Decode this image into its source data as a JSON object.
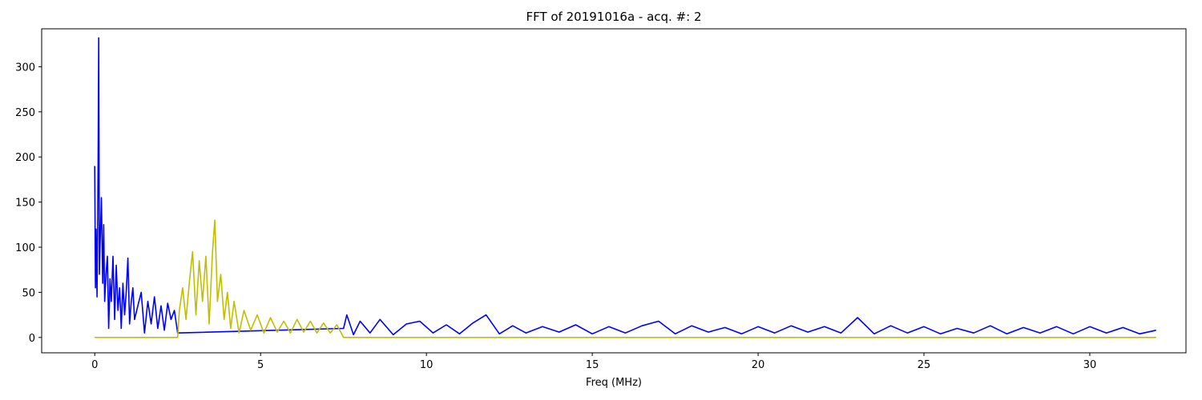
{
  "chart_data": {
    "type": "line",
    "title": "FFT of 20191016a - acq. #: 2",
    "xlabel": "Freq (MHz)",
    "ylabel": "",
    "xlim": [
      -1.6,
      32.9
    ],
    "ylim": [
      -17,
      342
    ],
    "grid": false,
    "xticks": [
      {
        "value": 0,
        "label": "0"
      },
      {
        "value": 5,
        "label": "5"
      },
      {
        "value": 10,
        "label": "10"
      },
      {
        "value": 15,
        "label": "15"
      },
      {
        "value": 20,
        "label": "20"
      },
      {
        "value": 25,
        "label": "25"
      },
      {
        "value": 30,
        "label": "30"
      }
    ],
    "yticks": [
      {
        "value": 0,
        "label": "0"
      },
      {
        "value": 50,
        "label": "50"
      },
      {
        "value": 100,
        "label": "100"
      },
      {
        "value": 150,
        "label": "150"
      },
      {
        "value": 200,
        "label": "200"
      },
      {
        "value": 250,
        "label": "250"
      },
      {
        "value": 300,
        "label": "300"
      }
    ],
    "series": [
      {
        "color": "#0000ff",
        "x": [
          0.0,
          0.02,
          0.04,
          0.07,
          0.1,
          0.12,
          0.14,
          0.16,
          0.2,
          0.24,
          0.27,
          0.3,
          0.34,
          0.38,
          0.42,
          0.46,
          0.5,
          0.55,
          0.6,
          0.65,
          0.7,
          0.75,
          0.8,
          0.85,
          0.9,
          0.95,
          1.0,
          1.05,
          1.1,
          1.15,
          1.2,
          1.3,
          1.4,
          1.5,
          1.6,
          1.7,
          1.8,
          1.9,
          2.0,
          2.1,
          2.2,
          2.3,
          2.4,
          2.5,
          7.5,
          7.6,
          7.8,
          8.0,
          8.3,
          8.6,
          9.0,
          9.4,
          9.8,
          10.2,
          10.6,
          11.0,
          11.4,
          11.8,
          12.2,
          12.6,
          13.0,
          13.5,
          14.0,
          14.5,
          15.0,
          15.5,
          16.0,
          16.5,
          17.0,
          17.5,
          18.0,
          18.5,
          19.0,
          19.5,
          20.0,
          20.5,
          21.0,
          21.5,
          22.0,
          22.5,
          23.0,
          23.5,
          24.0,
          24.5,
          25.0,
          25.5,
          26.0,
          26.5,
          27.0,
          27.5,
          28.0,
          28.5,
          29.0,
          29.5,
          30.0,
          30.5,
          31.0,
          31.5,
          32.0
        ],
        "y": [
          190,
          55,
          120,
          45,
          190,
          332,
          70,
          100,
          155,
          60,
          125,
          40,
          70,
          90,
          10,
          65,
          40,
          90,
          20,
          80,
          30,
          55,
          10,
          60,
          25,
          50,
          88,
          15,
          40,
          55,
          20,
          35,
          50,
          5,
          40,
          15,
          45,
          10,
          35,
          8,
          38,
          20,
          30,
          5,
          10,
          25,
          3,
          18,
          5,
          20,
          3,
          15,
          18,
          5,
          14,
          4,
          16,
          25,
          4,
          13,
          5,
          12,
          6,
          14,
          4,
          12,
          5,
          13,
          18,
          4,
          13,
          6,
          11,
          4,
          12,
          5,
          13,
          6,
          12,
          5,
          22,
          4,
          13,
          5,
          12,
          4,
          10,
          5,
          13,
          4,
          11,
          5,
          12,
          4,
          12,
          5,
          11,
          4,
          8
        ]
      },
      {
        "color": "#bfbf00",
        "x": [
          0.0,
          2.5,
          2.55,
          2.65,
          2.75,
          2.85,
          2.95,
          3.05,
          3.15,
          3.25,
          3.35,
          3.45,
          3.55,
          3.62,
          3.7,
          3.8,
          3.9,
          4.0,
          4.1,
          4.2,
          4.35,
          4.5,
          4.7,
          4.9,
          5.1,
          5.3,
          5.5,
          5.7,
          5.9,
          6.1,
          6.3,
          6.5,
          6.7,
          6.9,
          7.1,
          7.3,
          7.5,
          32.0
        ],
        "y": [
          0,
          0,
          30,
          55,
          20,
          60,
          95,
          25,
          85,
          40,
          90,
          15,
          95,
          130,
          40,
          70,
          20,
          50,
          10,
          40,
          5,
          30,
          8,
          25,
          5,
          22,
          6,
          18,
          5,
          20,
          6,
          18,
          5,
          16,
          5,
          14,
          0,
          0
        ]
      }
    ]
  }
}
